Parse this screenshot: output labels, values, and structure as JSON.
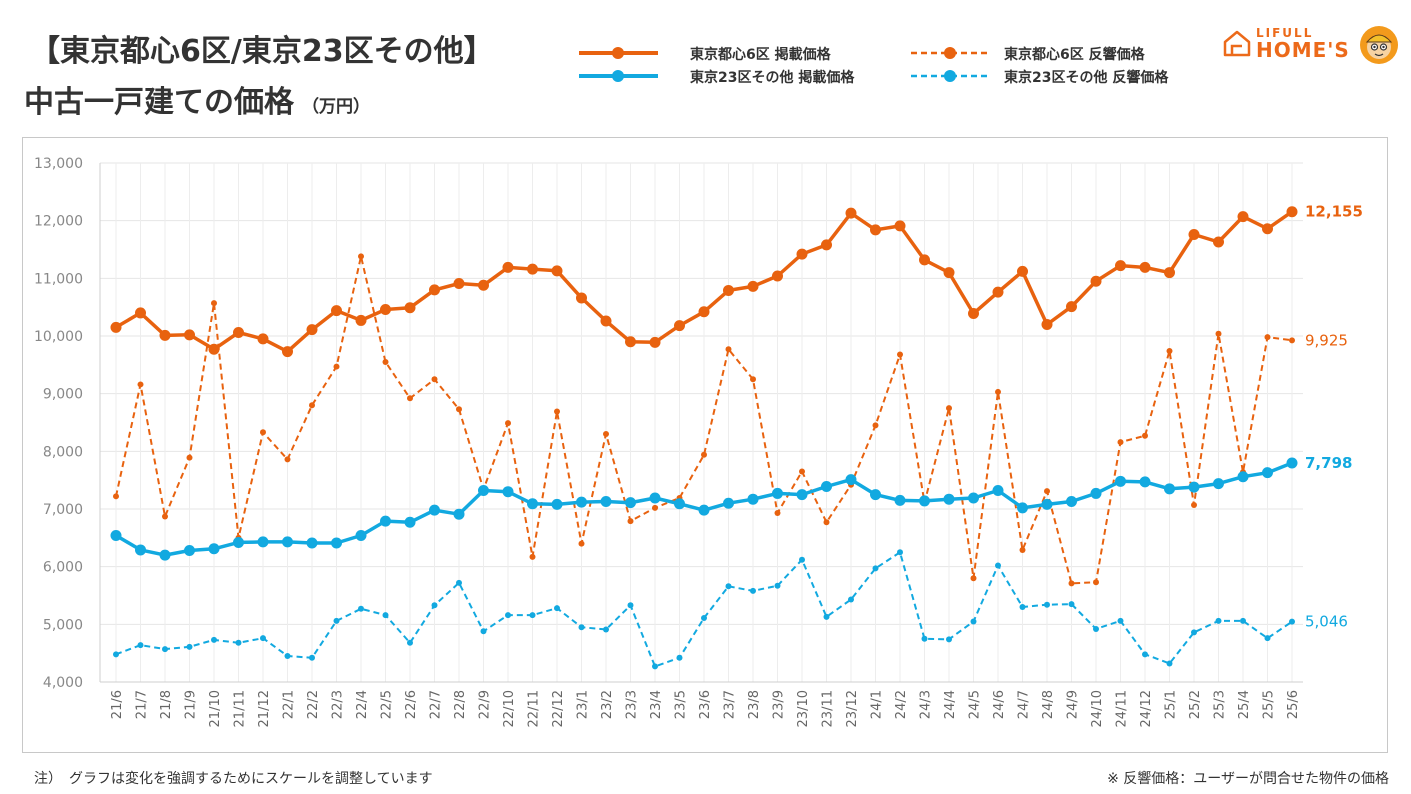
{
  "header": {
    "title_line1": "【東京都心6区/東京23区その他】",
    "title_line2": "中古一戸建ての価格",
    "unit": "（万円）"
  },
  "logo": {
    "line1": "LIFULL",
    "line2": "HOME'S",
    "icon": "house-icon"
  },
  "colors": {
    "orange": "#e8620f",
    "blue": "#12a9e0"
  },
  "chart_data": {
    "type": "line",
    "ylim": [
      4000,
      13000
    ],
    "yticks": [
      "4,000",
      "5,000",
      "6,000",
      "7,000",
      "8,000",
      "9,000",
      "10,000",
      "11,000",
      "12,000",
      "13,000"
    ],
    "grid": true,
    "legend_position": "top-right",
    "x": [
      "21/6",
      "21/7",
      "21/8",
      "21/9",
      "21/10",
      "21/11",
      "21/12",
      "22/1",
      "22/2",
      "22/3",
      "22/4",
      "22/5",
      "22/6",
      "22/7",
      "22/8",
      "22/9",
      "22/10",
      "22/11",
      "22/12",
      "23/1",
      "23/2",
      "23/3",
      "23/4",
      "23/5",
      "23/6",
      "23/7",
      "23/8",
      "23/9",
      "23/10",
      "23/11",
      "23/12",
      "24/1",
      "24/2",
      "24/3",
      "24/4",
      "24/5",
      "24/6",
      "24/7",
      "24/8",
      "24/9",
      "24/10",
      "24/11",
      "24/12",
      "25/1",
      "25/2",
      "25/3",
      "25/4",
      "25/5",
      "25/6"
    ],
    "series": [
      {
        "name": "東京都心6区 掲載価格",
        "color": "#e8620f",
        "style": "solid",
        "end_label": "12,155",
        "values": [
          10150,
          10400,
          10010,
          10020,
          9770,
          10060,
          9950,
          9730,
          10110,
          10440,
          10270,
          10460,
          10490,
          10800,
          10910,
          10880,
          11190,
          11160,
          11130,
          10660,
          10260,
          9900,
          9890,
          10180,
          10420,
          10790,
          10860,
          11040,
          11420,
          11580,
          12130,
          11840,
          11910,
          11320,
          11100,
          10390,
          10760,
          11120,
          10200,
          10510,
          10950,
          11220,
          11190,
          11100,
          11760,
          11630,
          12070,
          11860,
          12155
        ]
      },
      {
        "name": "東京都心6区 反響価格",
        "color": "#e8620f",
        "style": "dashed",
        "end_label": "9,925",
        "values": [
          7220,
          9160,
          6870,
          7890,
          10570,
          6500,
          8330,
          7860,
          8800,
          9470,
          11380,
          9550,
          8920,
          9250,
          8730,
          7340,
          8490,
          6170,
          8690,
          6400,
          8300,
          6790,
          7020,
          7190,
          7940,
          9770,
          9250,
          6930,
          7650,
          6770,
          7420,
          8450,
          9680,
          7110,
          8750,
          5800,
          9030,
          6290,
          7310,
          5710,
          5730,
          8160,
          8270,
          9740,
          7070,
          10040,
          7640,
          9980,
          9925
        ]
      },
      {
        "name": "東京23区その他 掲載価格",
        "color": "#12a9e0",
        "style": "solid",
        "end_label": "7,798",
        "values": [
          6540,
          6290,
          6200,
          6280,
          6310,
          6420,
          6430,
          6430,
          6410,
          6410,
          6540,
          6790,
          6770,
          6980,
          6910,
          7320,
          7300,
          7090,
          7080,
          7120,
          7130,
          7110,
          7190,
          7090,
          6980,
          7100,
          7170,
          7270,
          7250,
          7390,
          7510,
          7250,
          7150,
          7140,
          7170,
          7190,
          7320,
          7020,
          7080,
          7130,
          7270,
          7480,
          7470,
          7350,
          7380,
          7440,
          7560,
          7630,
          7798
        ]
      },
      {
        "name": "東京23区その他 反響価格",
        "color": "#12a9e0",
        "style": "dashed",
        "end_label": "5,046",
        "values": [
          4480,
          4640,
          4570,
          4610,
          4730,
          4680,
          4760,
          4450,
          4420,
          5060,
          5270,
          5160,
          4680,
          5330,
          5720,
          4880,
          5160,
          5160,
          5280,
          4950,
          4910,
          5330,
          4270,
          4420,
          5110,
          5660,
          5580,
          5670,
          6120,
          5130,
          5430,
          5970,
          6250,
          4750,
          4740,
          5050,
          6020,
          5300,
          5340,
          5350,
          4920,
          5060,
          4480,
          4320,
          4860,
          5060,
          5060,
          4760,
          5046
        ]
      }
    ]
  },
  "notes": {
    "left": "注）　グラフは変化を強調するためにスケールを調整しています",
    "right": "※ 反響価格：ユーザーが問合せた物件の価格"
  }
}
